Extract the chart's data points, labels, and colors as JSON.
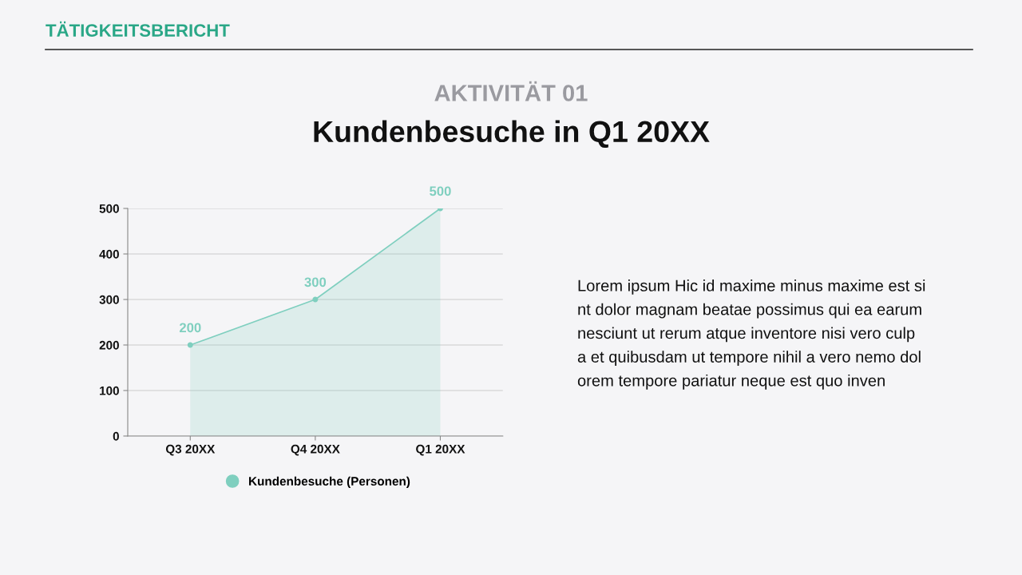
{
  "chart_data": {
    "type": "area",
    "title": "Kundenbesuche in Q1 20XX",
    "subtitle": "AKTIVITÄT 01",
    "categories": [
      "Q3 20XX",
      "Q4 20XX",
      "Q1 20XX"
    ],
    "series": [
      {
        "name": "Kundenbesuche (Personen)",
        "color": "#7fcfbf",
        "values": [
          200,
          300,
          500
        ]
      }
    ],
    "ylim": [
      0,
      500
    ],
    "yticks": [
      0,
      100,
      200,
      300,
      400,
      500
    ],
    "grid": "y",
    "legend": "bottom",
    "marker": "circle",
    "data_labels": true,
    "annotations": [
      "TÄTIGKEITSBERICHT",
      "Lorem ipsum Hic id maxime minus maxime est si\nnt dolor magnam beatae possimus qui ea earum\nnesciunt ut rerum atque inventore nisi vero culp\na et quibusdam ut tempore nihil a vero nemo dol\norem tempore pariatur neque est quo inven"
    ]
  }
}
